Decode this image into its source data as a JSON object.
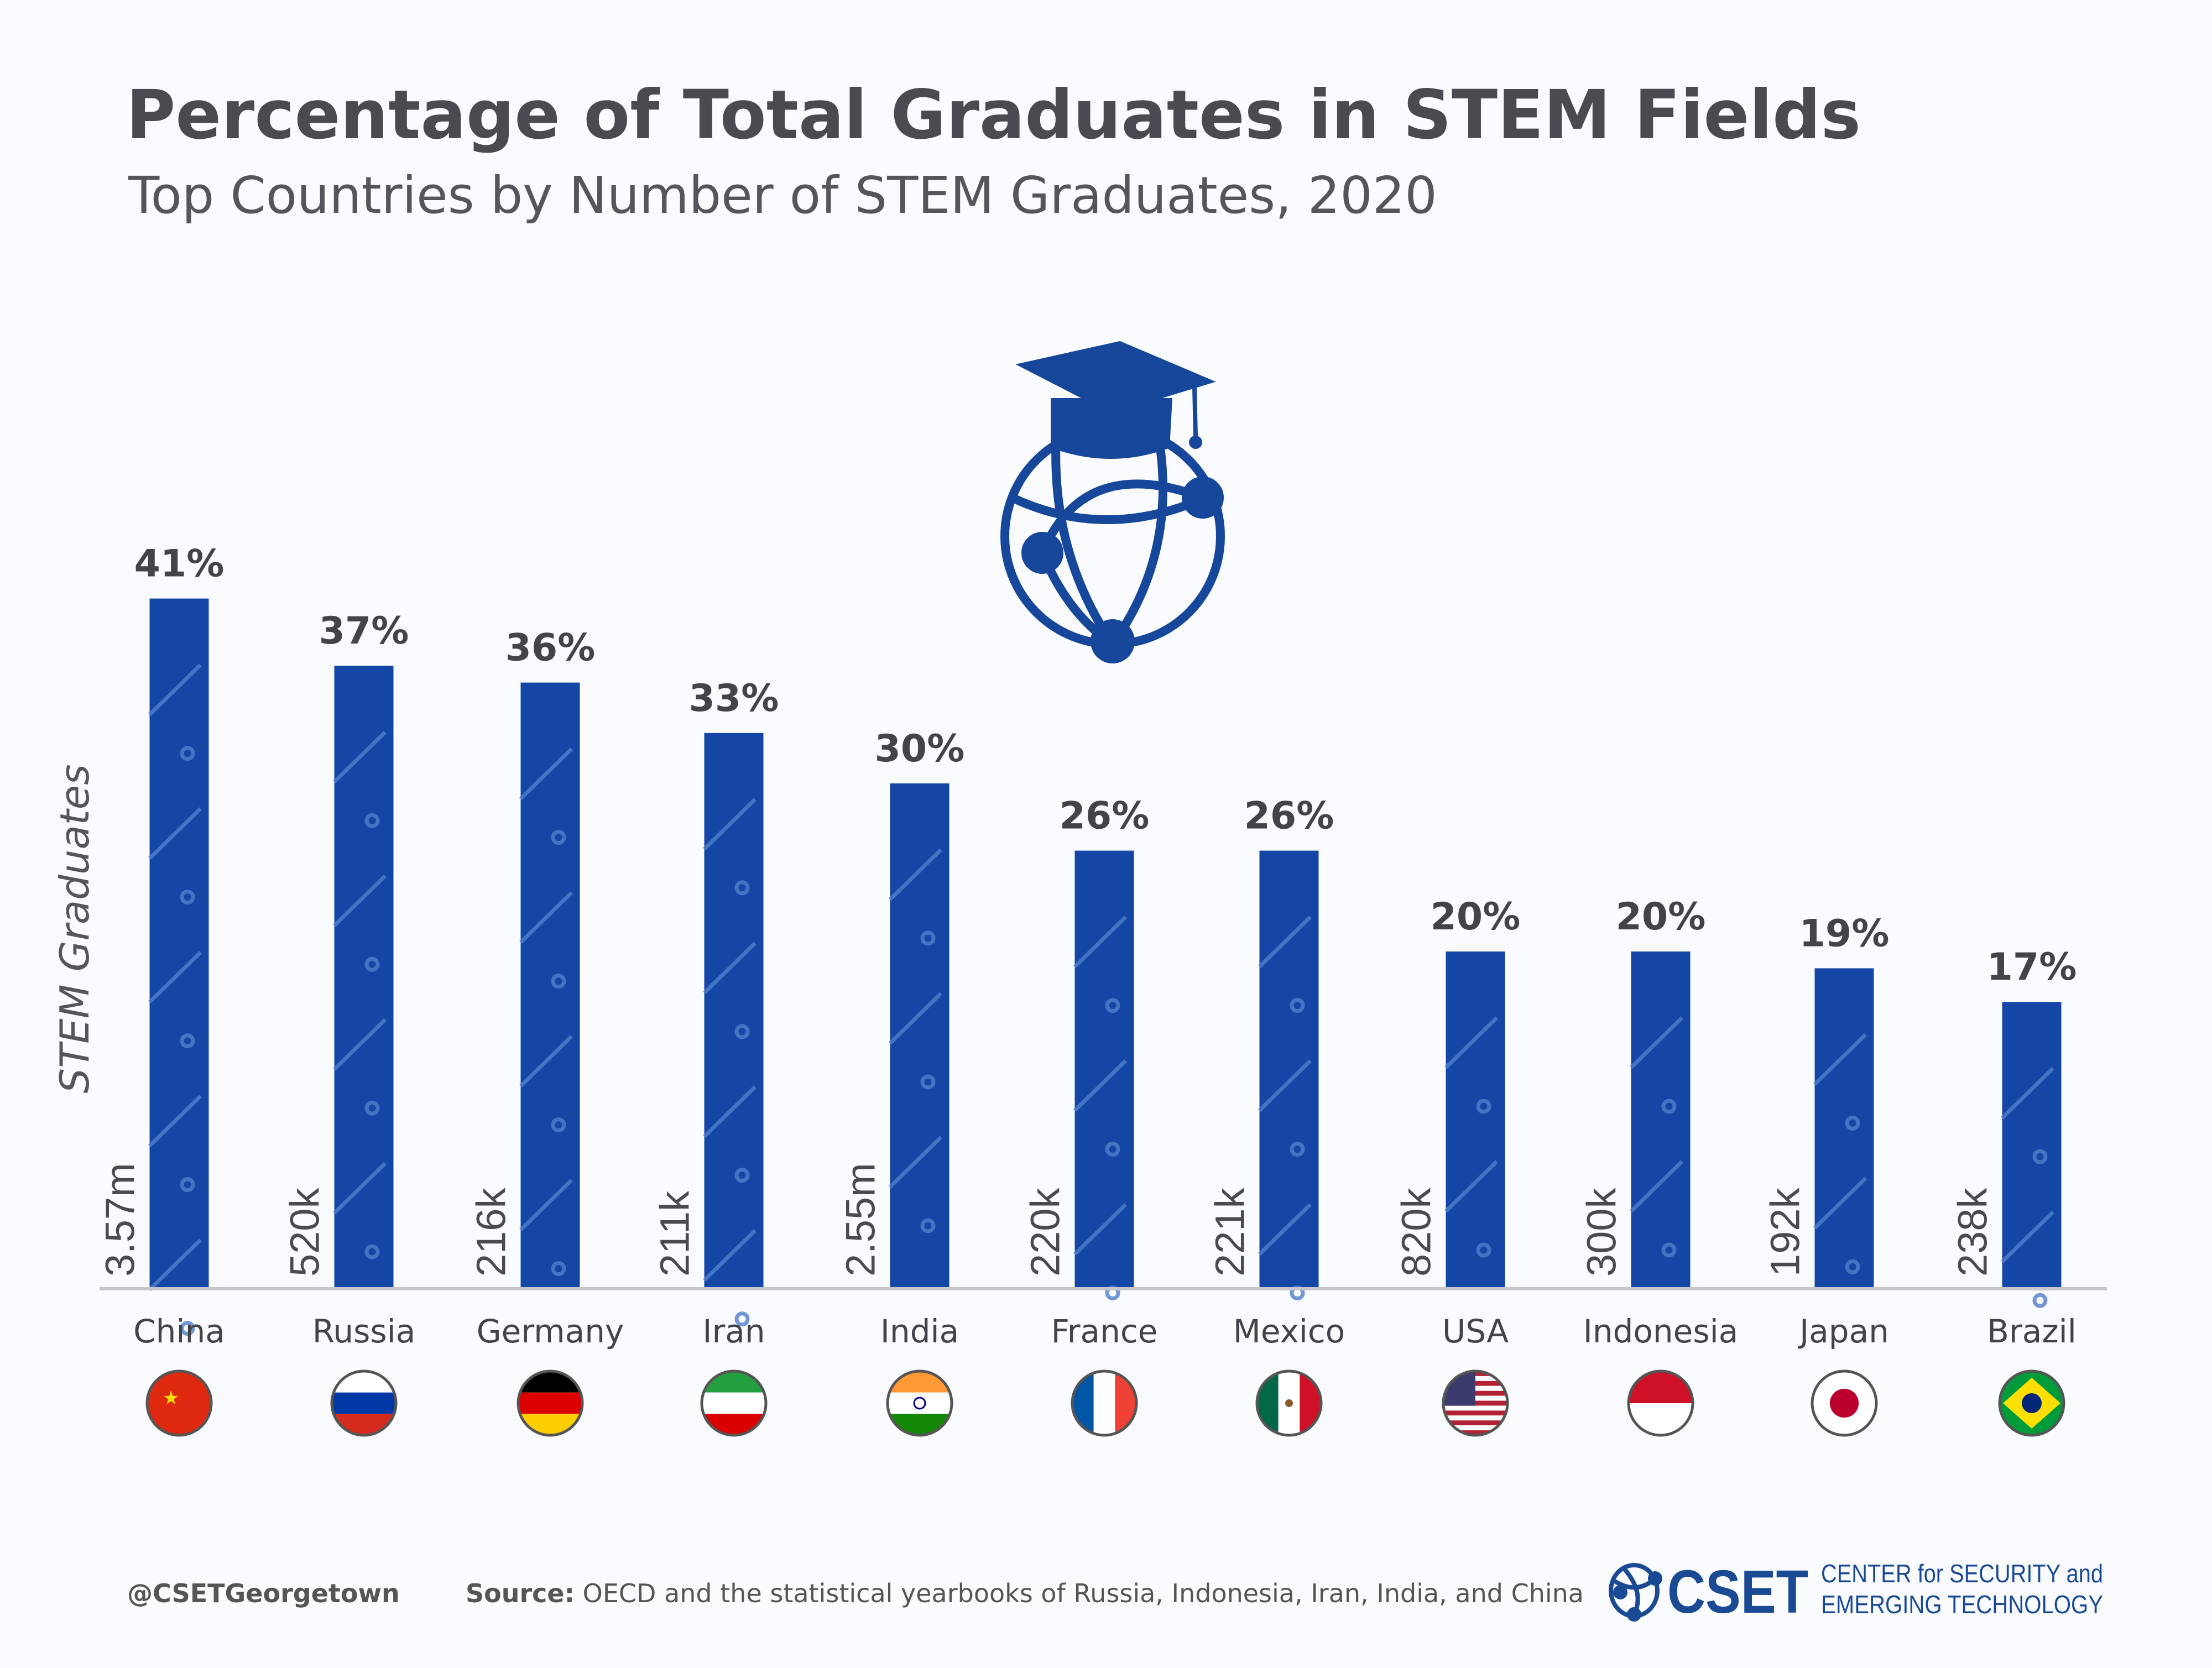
{
  "title": "Percentage of Total Graduates in STEM Fields",
  "subtitle": "Top Countries by Number of STEM Graduates, 2020",
  "chart_data": {
    "type": "bar",
    "title": "Percentage of Total Graduates in STEM Fields",
    "subtitle": "Top Countries by Number of STEM Graduates, 2020",
    "ylabel": "STEM Graduates",
    "ylim": [
      0,
      41
    ],
    "grid": false,
    "categories": [
      "China",
      "Russia",
      "Germany",
      "Iran",
      "India",
      "France",
      "Mexico",
      "USA",
      "Indonesia",
      "Japan",
      "Brazil"
    ],
    "values": [
      41,
      37,
      36,
      33,
      30,
      26,
      26,
      20,
      20,
      19,
      17
    ],
    "value_labels": [
      "41%",
      "37%",
      "36%",
      "33%",
      "30%",
      "26%",
      "26%",
      "20%",
      "20%",
      "19%",
      "17%"
    ],
    "graduate_counts": [
      "3.57m",
      "520k",
      "216k",
      "211k",
      "2.55m",
      "220k",
      "221k",
      "820k",
      "300k",
      "192k",
      "238k"
    ],
    "bar_color": "#1446a6"
  },
  "footer": {
    "handle": "@CSETGeorgetown",
    "source_label": "Source:",
    "source_text": " OECD and the statistical yearbooks of Russia, Indonesia, Iran, India, and China"
  },
  "logo": {
    "text": "CSET",
    "line1": "CENTER for SECURITY and",
    "line2": "EMERGING TECHNOLOGY",
    "color": "#1a4a94"
  },
  "icons": [
    "graduation-cap-globe-icon"
  ]
}
